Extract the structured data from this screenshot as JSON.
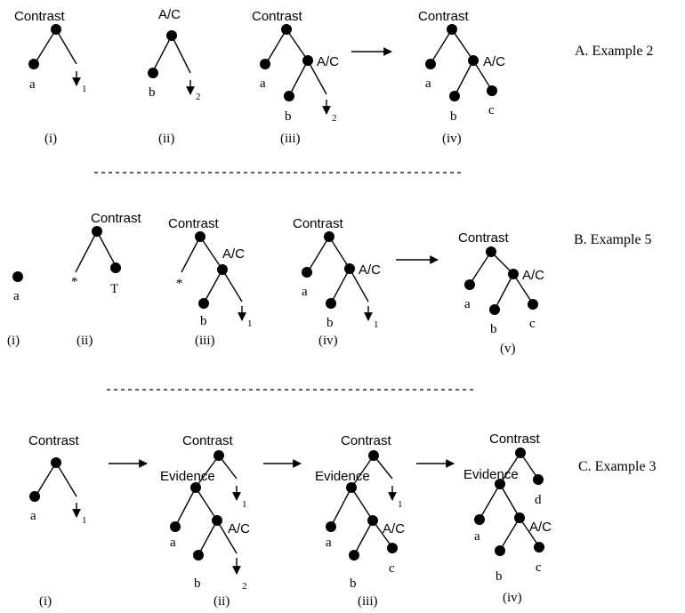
{
  "relations": {
    "contrast": "Contrast",
    "ac": "A/C",
    "evidence": "Evidence"
  },
  "leaves": {
    "a": "a",
    "b": "b",
    "c": "c",
    "d": "d",
    "t": "T",
    "star": "*"
  },
  "subs": {
    "one": "1",
    "two": "2"
  },
  "steps": {
    "i": "(i)",
    "ii": "(ii)",
    "iii": "(iii)",
    "iv": "(iv)",
    "v": "(v)"
  },
  "sections": {
    "a": "A. Example 2",
    "b": "B. Example 5",
    "c": "C. Example 3"
  }
}
